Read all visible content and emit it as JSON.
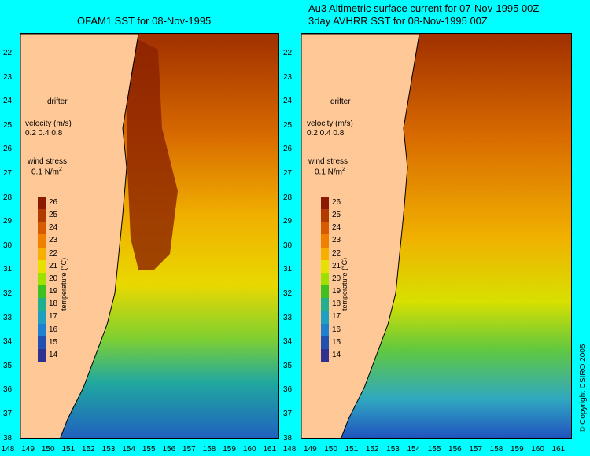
{
  "left_panel": {
    "title": "OFAM1 SST for 08-Nov-1995"
  },
  "right_panel": {
    "title_line1": "Au3 Altimetric surface current for 07-Nov-1995 00Z",
    "title_line2": "3day AVHRR SST for 08-Nov-1995 00Z"
  },
  "legend": {
    "drifter": "drifter",
    "velocity_label": "velocity (m/s)",
    "velocity_scale": "0.2 0.4 0.8",
    "wind_label": "wind stress",
    "wind_scale": "0.1 N/m"
  },
  "colorbar": {
    "title": "temperature (°C)",
    "ticks": [
      "26",
      "25",
      "24",
      "23",
      "22",
      "21",
      "20",
      "19",
      "18",
      "17",
      "16",
      "15",
      "14"
    ],
    "colors": [
      "#8b1a00",
      "#b03a00",
      "#d85a00",
      "#f08000",
      "#f8b000",
      "#e8e000",
      "#a0e000",
      "#40c020",
      "#20b090",
      "#20a0c0",
      "#2080d0",
      "#2050b0",
      "#303090"
    ]
  },
  "axes": {
    "lat_ticks": [
      "22",
      "23",
      "24",
      "25",
      "26",
      "27",
      "28",
      "29",
      "30",
      "31",
      "32",
      "33",
      "34",
      "35",
      "36",
      "37",
      "38"
    ],
    "lon_ticks_left": [
      "148",
      "149",
      "150",
      "151",
      "152",
      "153",
      "154",
      "155",
      "156",
      "157",
      "158",
      "159",
      "160",
      "161"
    ],
    "lon_ticks_right": [
      "148",
      "149",
      "150",
      "151",
      "152",
      "153",
      "154",
      "155",
      "156",
      "157",
      "158",
      "159",
      "160",
      "161"
    ]
  },
  "copyright": "© Copyright CSIRO 2005",
  "colors": {
    "background": "#00ffff",
    "land": "#ffc896"
  }
}
